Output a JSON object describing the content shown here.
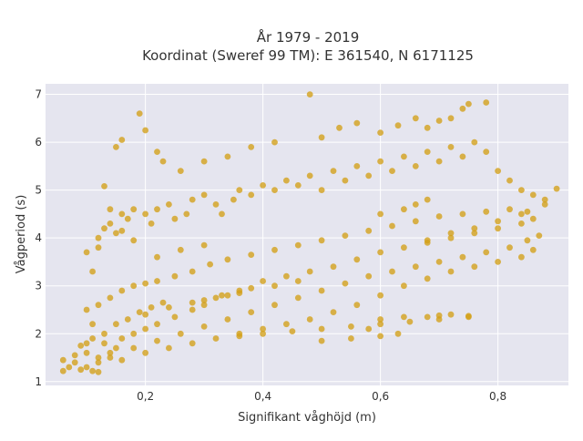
{
  "chart_data": {
    "type": "scatter",
    "title_line1": "År 1979 - 2019",
    "title_line2": "Koordinat (Sweref 99 TM): E 361540, N 6171125",
    "xlabel": "Signifikant våghöjd (m)",
    "ylabel": "Vågperiod (s)",
    "xlim": [
      0.03,
      0.92
    ],
    "ylim": [
      0.92,
      7.22
    ],
    "x_ticks": [
      0.2,
      0.4,
      0.6,
      0.8
    ],
    "x_tick_labels": [
      "0,2",
      "0,4",
      "0,6",
      "0,8"
    ],
    "y_ticks": [
      1,
      2,
      3,
      4,
      5,
      6,
      7
    ],
    "y_tick_labels": [
      "1",
      "2",
      "3",
      "4",
      "5",
      "6",
      "7"
    ],
    "grid": true,
    "colors": {
      "marker": "#d4a017",
      "plot_bg": "#e5e5ef",
      "grid": "#ffffff"
    },
    "series": [
      {
        "values": [
          [
            0.06,
            1.22
          ],
          [
            0.06,
            1.45
          ],
          [
            0.07,
            1.3
          ],
          [
            0.08,
            1.4
          ],
          [
            0.08,
            1.55
          ],
          [
            0.09,
            1.25
          ],
          [
            0.1,
            1.3
          ],
          [
            0.1,
            1.6
          ],
          [
            0.11,
            1.22
          ],
          [
            0.12,
            1.2
          ],
          [
            0.12,
            1.5
          ],
          [
            0.13,
            1.8
          ],
          [
            0.14,
            1.5
          ],
          [
            0.15,
            1.7
          ],
          [
            0.16,
            1.9
          ],
          [
            0.18,
            2.0
          ],
          [
            0.2,
            2.1
          ],
          [
            0.22,
            2.2
          ],
          [
            0.25,
            2.35
          ],
          [
            0.28,
            2.5
          ],
          [
            0.3,
            2.6
          ],
          [
            0.33,
            2.8
          ],
          [
            0.36,
            2.9
          ],
          [
            0.4,
            3.1
          ],
          [
            0.44,
            3.2
          ],
          [
            0.48,
            3.3
          ],
          [
            0.52,
            3.4
          ],
          [
            0.56,
            3.55
          ],
          [
            0.6,
            3.7
          ],
          [
            0.64,
            3.8
          ],
          [
            0.68,
            3.95
          ],
          [
            0.72,
            4.1
          ],
          [
            0.76,
            4.2
          ],
          [
            0.8,
            4.35
          ],
          [
            0.84,
            4.5
          ],
          [
            0.88,
            4.7
          ],
          [
            0.87,
            4.05
          ],
          [
            0.85,
            3.95
          ],
          [
            0.82,
            3.8
          ],
          [
            0.78,
            3.7
          ],
          [
            0.74,
            3.6
          ],
          [
            0.7,
            3.5
          ],
          [
            0.66,
            3.4
          ],
          [
            0.62,
            3.3
          ],
          [
            0.58,
            3.2
          ],
          [
            0.54,
            3.05
          ],
          [
            0.5,
            2.9
          ],
          [
            0.46,
            2.75
          ],
          [
            0.42,
            2.6
          ],
          [
            0.38,
            2.45
          ],
          [
            0.34,
            2.3
          ],
          [
            0.3,
            2.15
          ],
          [
            0.26,
            2.0
          ],
          [
            0.22,
            1.85
          ],
          [
            0.18,
            1.7
          ],
          [
            0.14,
            1.6
          ],
          [
            0.12,
            1.4
          ],
          [
            0.16,
            1.45
          ],
          [
            0.2,
            1.6
          ],
          [
            0.24,
            1.7
          ],
          [
            0.28,
            1.8
          ],
          [
            0.32,
            1.9
          ],
          [
            0.36,
            2.0
          ],
          [
            0.4,
            2.1
          ],
          [
            0.44,
            2.2
          ],
          [
            0.48,
            2.3
          ],
          [
            0.52,
            2.45
          ],
          [
            0.56,
            2.6
          ],
          [
            0.6,
            2.8
          ],
          [
            0.64,
            3.0
          ],
          [
            0.68,
            3.15
          ],
          [
            0.72,
            3.3
          ],
          [
            0.76,
            3.4
          ],
          [
            0.8,
            3.5
          ],
          [
            0.84,
            3.6
          ],
          [
            0.86,
            3.75
          ],
          [
            0.36,
            1.95
          ],
          [
            0.4,
            2.0
          ],
          [
            0.45,
            2.05
          ],
          [
            0.5,
            2.1
          ],
          [
            0.55,
            2.15
          ],
          [
            0.6,
            2.2
          ],
          [
            0.65,
            2.25
          ],
          [
            0.7,
            2.3
          ],
          [
            0.75,
            2.35
          ],
          [
            0.5,
            1.85
          ],
          [
            0.55,
            1.9
          ],
          [
            0.6,
            1.95
          ],
          [
            0.63,
            2.0
          ],
          [
            0.58,
            2.1
          ],
          [
            0.1,
            2.5
          ],
          [
            0.12,
            2.6
          ],
          [
            0.14,
            2.75
          ],
          [
            0.16,
            2.9
          ],
          [
            0.18,
            3.0
          ],
          [
            0.2,
            3.05
          ],
          [
            0.22,
            3.1
          ],
          [
            0.25,
            3.2
          ],
          [
            0.28,
            3.3
          ],
          [
            0.31,
            3.45
          ],
          [
            0.34,
            3.55
          ],
          [
            0.38,
            3.65
          ],
          [
            0.42,
            3.75
          ],
          [
            0.46,
            3.85
          ],
          [
            0.5,
            3.95
          ],
          [
            0.54,
            4.05
          ],
          [
            0.58,
            4.15
          ],
          [
            0.62,
            4.25
          ],
          [
            0.66,
            4.35
          ],
          [
            0.7,
            4.45
          ],
          [
            0.74,
            4.5
          ],
          [
            0.78,
            4.55
          ],
          [
            0.82,
            4.6
          ],
          [
            0.85,
            4.55
          ],
          [
            0.86,
            4.4
          ],
          [
            0.84,
            4.3
          ],
          [
            0.8,
            4.2
          ],
          [
            0.76,
            4.1
          ],
          [
            0.72,
            4.0
          ],
          [
            0.68,
            3.9
          ],
          [
            0.3,
            2.7
          ],
          [
            0.34,
            2.8
          ],
          [
            0.38,
            2.95
          ],
          [
            0.42,
            3.0
          ],
          [
            0.46,
            3.1
          ],
          [
            0.2,
            2.4
          ],
          [
            0.24,
            2.55
          ],
          [
            0.28,
            2.65
          ],
          [
            0.32,
            2.75
          ],
          [
            0.36,
            2.85
          ],
          [
            0.15,
            2.2
          ],
          [
            0.17,
            2.3
          ],
          [
            0.19,
            2.45
          ],
          [
            0.21,
            2.55
          ],
          [
            0.23,
            2.65
          ],
          [
            0.13,
            2.0
          ],
          [
            0.11,
            1.9
          ],
          [
            0.1,
            1.8
          ],
          [
            0.09,
            1.75
          ],
          [
            0.11,
            2.2
          ],
          [
            0.12,
            3.8
          ],
          [
            0.12,
            4.0
          ],
          [
            0.13,
            4.2
          ],
          [
            0.14,
            4.3
          ],
          [
            0.15,
            4.1
          ],
          [
            0.16,
            4.5
          ],
          [
            0.17,
            4.4
          ],
          [
            0.18,
            4.6
          ],
          [
            0.2,
            4.5
          ],
          [
            0.21,
            4.3
          ],
          [
            0.22,
            4.6
          ],
          [
            0.24,
            4.7
          ],
          [
            0.25,
            4.4
          ],
          [
            0.27,
            4.5
          ],
          [
            0.28,
            4.8
          ],
          [
            0.3,
            4.9
          ],
          [
            0.32,
            4.7
          ],
          [
            0.33,
            4.5
          ],
          [
            0.35,
            4.8
          ],
          [
            0.36,
            5.0
          ],
          [
            0.38,
            4.9
          ],
          [
            0.4,
            5.1
          ],
          [
            0.42,
            5.0
          ],
          [
            0.44,
            5.2
          ],
          [
            0.46,
            5.1
          ],
          [
            0.48,
            5.3
          ],
          [
            0.5,
            5.0
          ],
          [
            0.52,
            5.4
          ],
          [
            0.54,
            5.2
          ],
          [
            0.56,
            5.5
          ],
          [
            0.58,
            5.3
          ],
          [
            0.6,
            5.6
          ],
          [
            0.62,
            5.4
          ],
          [
            0.64,
            5.7
          ],
          [
            0.66,
            5.5
          ],
          [
            0.68,
            5.8
          ],
          [
            0.7,
            5.6
          ],
          [
            0.72,
            5.9
          ],
          [
            0.74,
            5.7
          ],
          [
            0.76,
            6.0
          ],
          [
            0.78,
            5.8
          ],
          [
            0.8,
            5.4
          ],
          [
            0.82,
            5.2
          ],
          [
            0.84,
            5.0
          ],
          [
            0.86,
            4.9
          ],
          [
            0.88,
            4.8
          ],
          [
            0.9,
            5.03
          ],
          [
            0.13,
            5.08
          ],
          [
            0.15,
            5.9
          ],
          [
            0.16,
            6.05
          ],
          [
            0.19,
            6.6
          ],
          [
            0.2,
            6.25
          ],
          [
            0.22,
            5.8
          ],
          [
            0.23,
            5.6
          ],
          [
            0.26,
            5.4
          ],
          [
            0.3,
            5.6
          ],
          [
            0.34,
            5.7
          ],
          [
            0.38,
            5.9
          ],
          [
            0.42,
            6.0
          ],
          [
            0.48,
            7.0
          ],
          [
            0.5,
            6.1
          ],
          [
            0.53,
            6.3
          ],
          [
            0.56,
            6.4
          ],
          [
            0.6,
            6.2
          ],
          [
            0.63,
            6.35
          ],
          [
            0.66,
            6.5
          ],
          [
            0.68,
            6.3
          ],
          [
            0.7,
            6.45
          ],
          [
            0.72,
            6.5
          ],
          [
            0.74,
            6.7
          ],
          [
            0.75,
            6.8
          ],
          [
            0.78,
            6.83
          ],
          [
            0.6,
            2.3
          ],
          [
            0.64,
            2.35
          ],
          [
            0.68,
            2.35
          ],
          [
            0.7,
            2.38
          ],
          [
            0.72,
            2.4
          ],
          [
            0.75,
            2.37
          ],
          [
            0.1,
            3.7
          ],
          [
            0.11,
            3.3
          ],
          [
            0.14,
            4.6
          ],
          [
            0.16,
            4.15
          ],
          [
            0.18,
            3.95
          ],
          [
            0.22,
            3.6
          ],
          [
            0.26,
            3.75
          ],
          [
            0.3,
            3.85
          ],
          [
            0.6,
            4.5
          ],
          [
            0.64,
            4.6
          ],
          [
            0.66,
            4.7
          ],
          [
            0.68,
            4.8
          ]
        ]
      }
    ]
  }
}
